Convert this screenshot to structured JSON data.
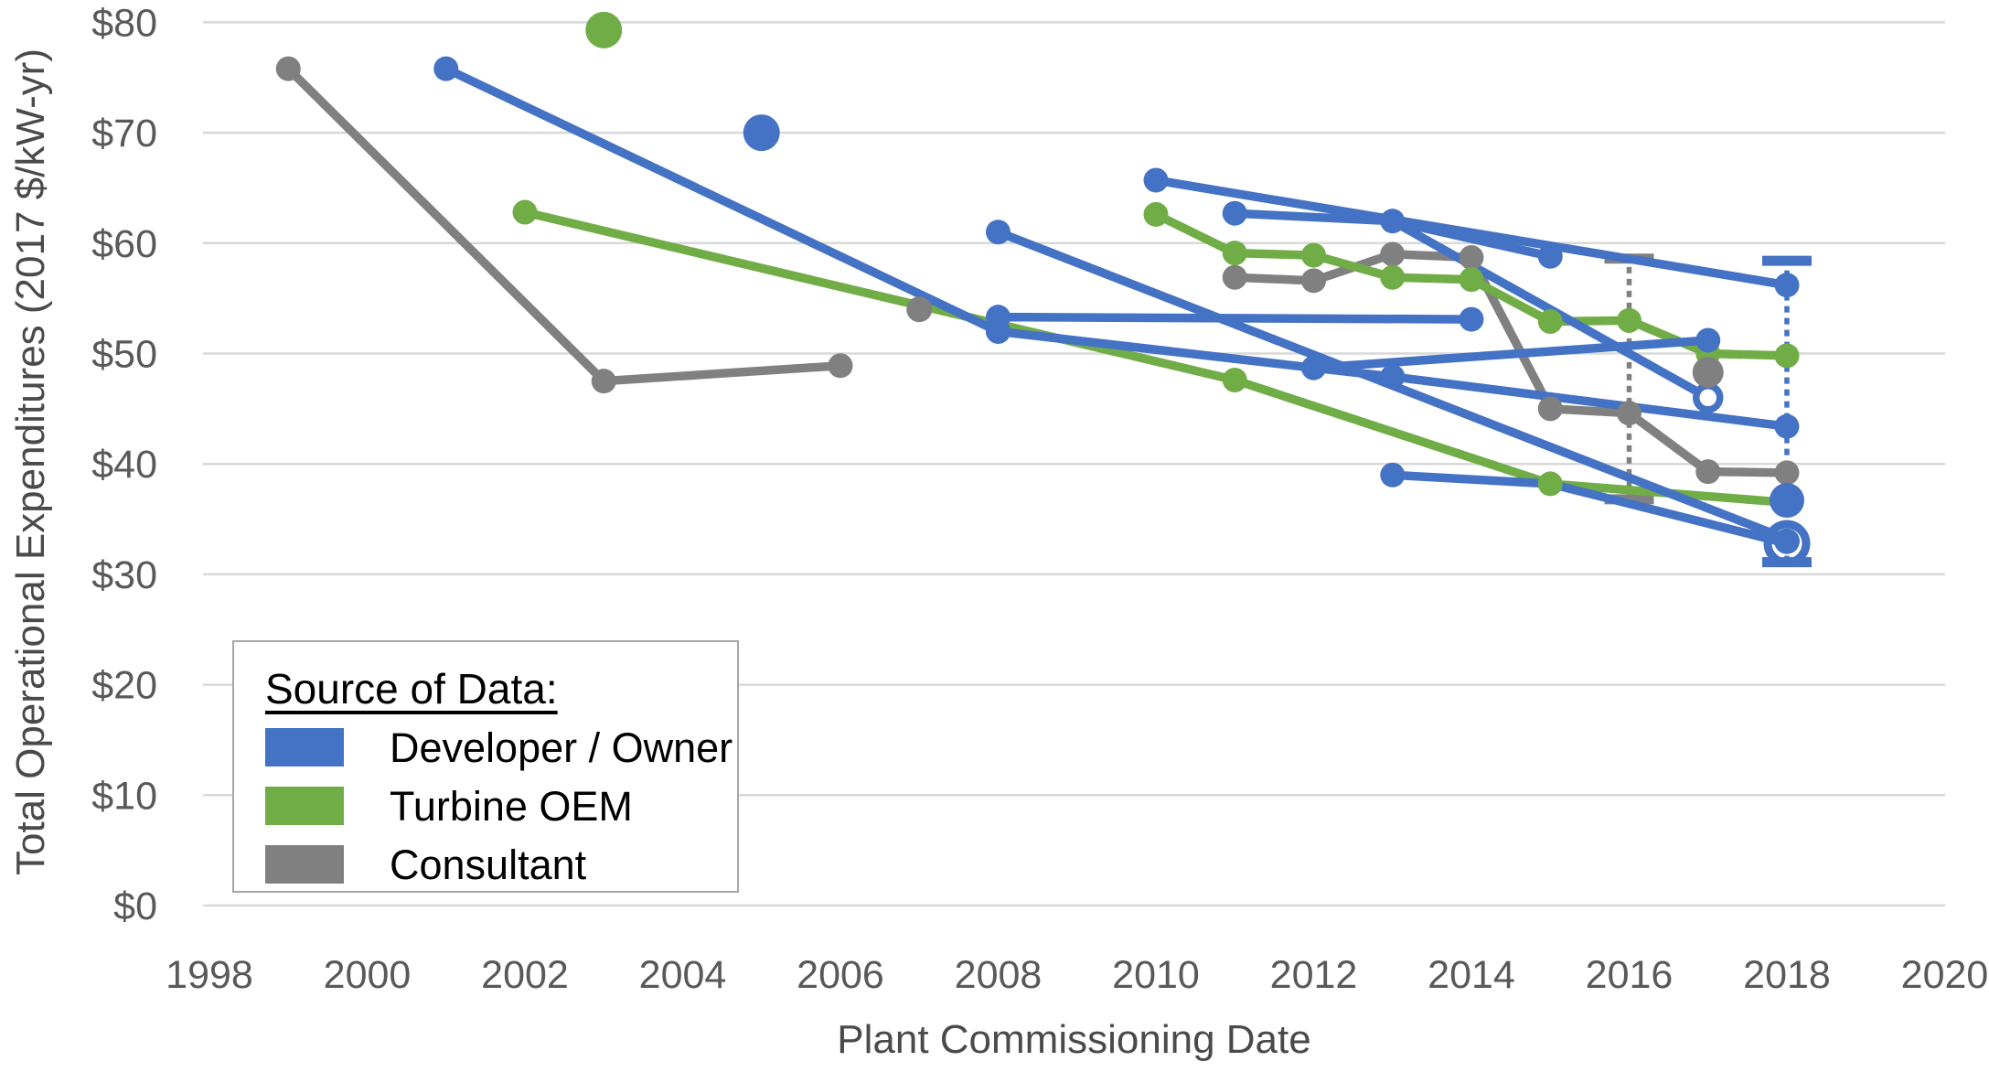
{
  "chart_data": {
    "type": "line",
    "title": "",
    "xlabel": "Plant Commissioning Date",
    "ylabel": "Total Operational Expenditures (2017 $/kW-yr)",
    "x_axis": {
      "ticks": [
        1998,
        2000,
        2002,
        2004,
        2006,
        2008,
        2010,
        2012,
        2014,
        2016,
        2018,
        2020
      ],
      "min": 1998,
      "max": 2020
    },
    "y_axis": {
      "ticks": [
        0,
        10,
        20,
        30,
        40,
        50,
        60,
        70,
        80
      ],
      "tick_labels": [
        "$0",
        "$10",
        "$20",
        "$30",
        "$40",
        "$50",
        "$60",
        "$70",
        "$80"
      ],
      "min": 0,
      "max": 80,
      "grid": true
    },
    "series": [
      {
        "name": "Consultant",
        "color": "#808080",
        "lines": [
          {
            "pts": [
              [
                1999,
                75.8
              ],
              [
                2003,
                47.5
              ],
              [
                2006,
                48.9
              ]
            ]
          },
          {
            "pts": [
              [
                2011,
                56.9
              ],
              [
                2012,
                56.6
              ],
              [
                2013,
                59.0
              ],
              [
                2014,
                58.7
              ],
              [
                2015,
                45.0
              ],
              [
                2016,
                44.6
              ],
              [
                2017,
                39.3
              ],
              [
                2018,
                39.2
              ]
            ]
          }
        ],
        "points": [
          {
            "x": 2007,
            "y": 54.0,
            "r": 14
          },
          {
            "x": 2017,
            "y": 48.3,
            "r": 17
          }
        ],
        "error_bars": [
          {
            "x": 2016,
            "low": 36.8,
            "high": 58.6
          }
        ]
      },
      {
        "name": "Turbine OEM",
        "color": "#70AD47",
        "lines": [
          {
            "pts": [
              [
                2002,
                62.8
              ],
              [
                2011,
                47.6
              ],
              [
                2015,
                38.2
              ],
              [
                2018,
                36.5
              ]
            ],
            "m": [
              1,
              1,
              1,
              0
            ]
          },
          {
            "pts": [
              [
                2010,
                62.6
              ],
              [
                2011,
                59.1
              ],
              [
                2012,
                58.9
              ],
              [
                2013,
                56.9
              ],
              [
                2014,
                56.7
              ],
              [
                2015,
                52.9
              ],
              [
                2016,
                53.0
              ],
              [
                2017,
                50.0
              ],
              [
                2018,
                49.8
              ]
            ]
          }
        ],
        "points": [
          {
            "x": 2003,
            "y": 79.3,
            "r": 20
          }
        ],
        "error_bars": []
      },
      {
        "name": "Developer / Owner",
        "color": "#4472C4",
        "lines": [
          {
            "pts": [
              [
                2001,
                75.8
              ],
              [
                2008,
                52.0
              ]
            ]
          },
          {
            "pts": [
              [
                2008,
                53.3
              ],
              [
                2014,
                53.1
              ]
            ]
          },
          {
            "pts": [
              [
                2008,
                52.0
              ],
              [
                2012,
                48.7
              ],
              [
                2013,
                47.9
              ],
              [
                2018,
                43.4
              ]
            ]
          },
          {
            "pts": [
              [
                2011,
                62.7
              ],
              [
                2013,
                62.0
              ],
              [
                2015,
                58.8
              ]
            ]
          },
          {
            "pts": [
              [
                2010,
                65.7
              ],
              [
                2018,
                56.2
              ]
            ]
          },
          {
            "pts": [
              [
                2013,
                62.0
              ],
              [
                2017,
                46.0
              ]
            ],
            "m": [
              0,
              2
            ]
          },
          {
            "pts": [
              [
                2012,
                48.7
              ],
              [
                2017,
                51.2
              ]
            ],
            "m": [
              0,
              1
            ]
          },
          {
            "pts": [
              [
                2008,
                61.0
              ],
              [
                2018,
                33.2
              ]
            ],
            "m": [
              1,
              0
            ]
          },
          {
            "pts": [
              [
                2013,
                39.0
              ],
              [
                2015,
                38.2
              ],
              [
                2018,
                32.8
              ]
            ],
            "m": [
              1,
              0,
              0
            ]
          }
        ],
        "points": [
          {
            "x": 2005,
            "y": 70.0,
            "r": 20
          },
          {
            "x": 2018,
            "y": 36.7,
            "r": 19
          },
          {
            "x": 2018,
            "y": 33.0,
            "r": 14
          },
          {
            "x": 2018,
            "y": 32.8,
            "r": 21,
            "open": true
          }
        ],
        "error_bars": [
          {
            "x": 2018,
            "low": 31.1,
            "high": 58.4
          }
        ]
      }
    ]
  },
  "legend": {
    "title": "Source of Data:",
    "items": [
      {
        "label": "Developer / Owner",
        "color": "#4472C4"
      },
      {
        "label": "Turbine OEM",
        "color": "#70AD47"
      },
      {
        "label": "Consultant",
        "color": "#808080"
      }
    ]
  },
  "styles": {
    "grid_color": "#d9d9d9",
    "tick_text_color": "#595959",
    "background": "#ffffff"
  }
}
